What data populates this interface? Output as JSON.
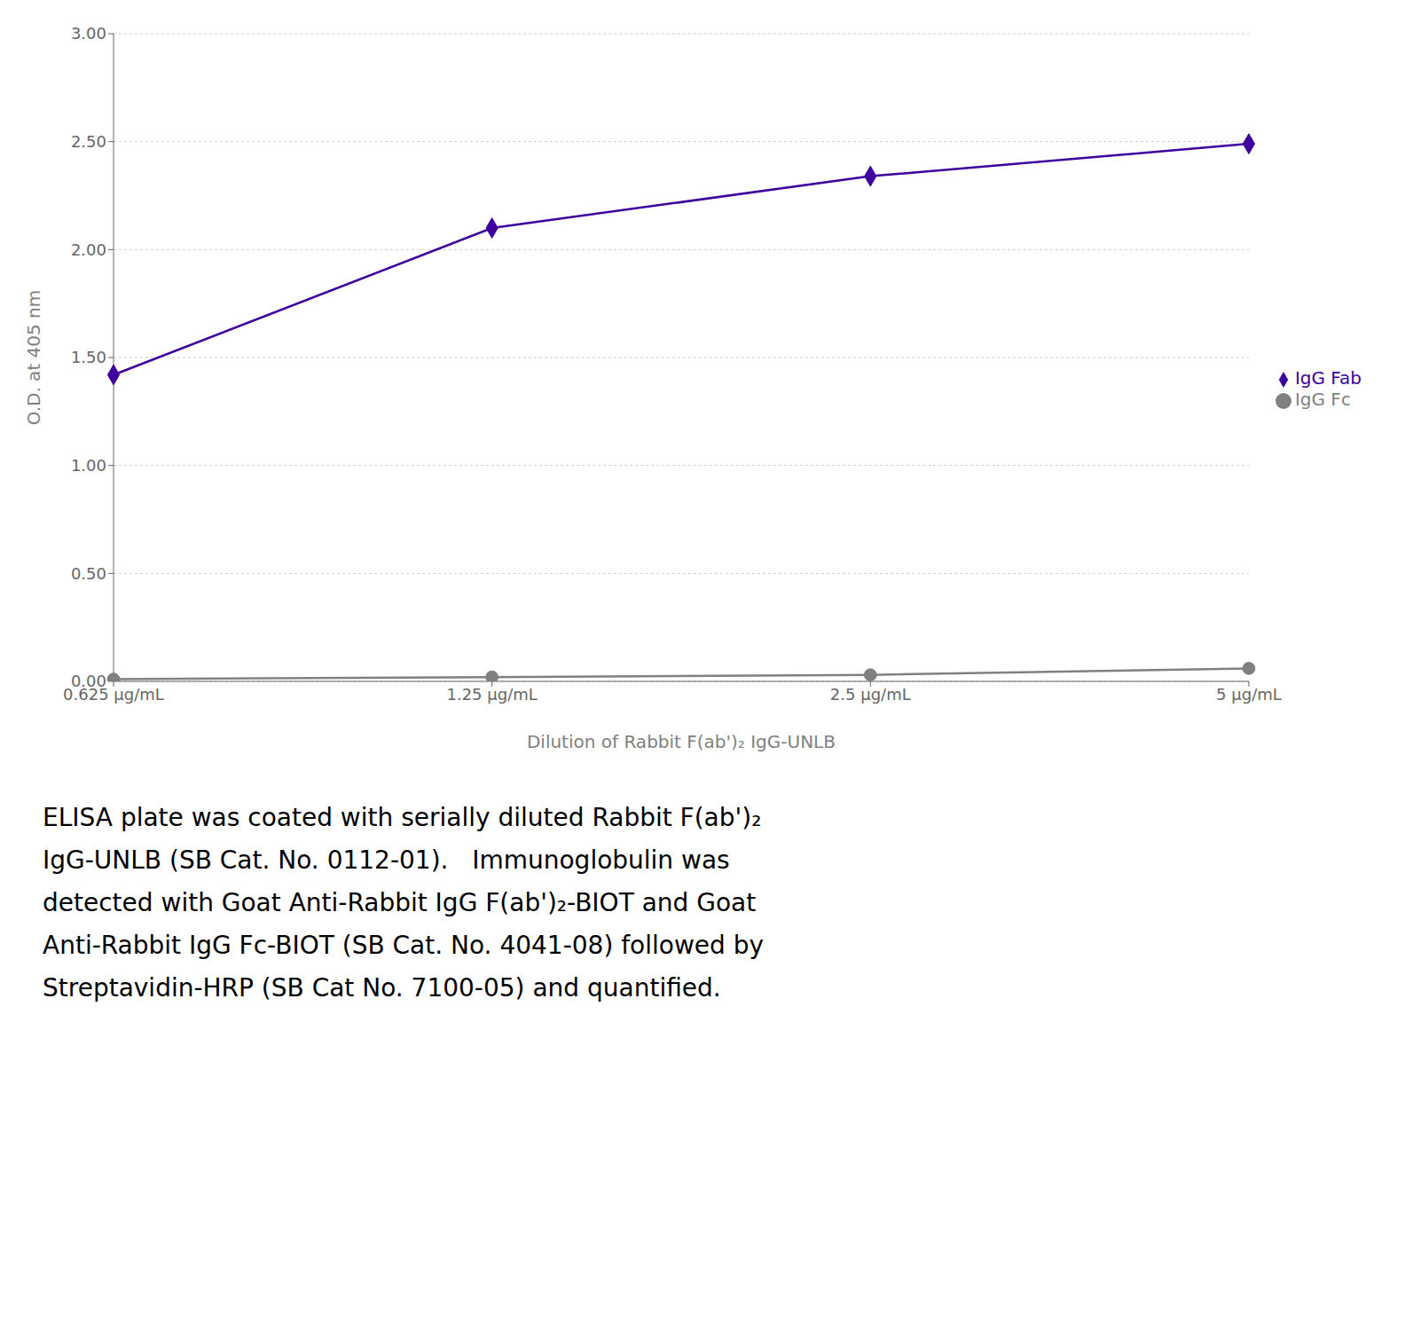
{
  "chart_data": {
    "type": "line",
    "xlabel": "Dilution of Rabbit F(ab')₂ IgG-UNLB",
    "ylabel": "O.D. at 405 nm",
    "categories": [
      "0.625 μg/mL",
      "1.25 μg/mL",
      "2.5 μg/mL",
      "5 μg/mL"
    ],
    "series": [
      {
        "name": "IgG Fab",
        "color": "#3d009e",
        "marker": "diamond",
        "values": [
          1.42,
          2.1,
          2.34,
          2.49
        ]
      },
      {
        "name": "IgG Fc",
        "color": "#808080",
        "marker": "circle",
        "values": [
          0.01,
          0.02,
          0.03,
          0.06
        ]
      }
    ],
    "ylim": [
      0.0,
      3.0
    ],
    "yticks": [
      {
        "value": 0.0,
        "label": "0.00"
      },
      {
        "value": 0.5,
        "label": "0.50"
      },
      {
        "value": 1.0,
        "label": "1.00"
      },
      {
        "value": 1.5,
        "label": "1.50"
      },
      {
        "value": 2.0,
        "label": "2.00"
      },
      {
        "value": 2.5,
        "label": "2.50"
      },
      {
        "value": 3.0,
        "label": "3.00"
      }
    ],
    "grid": "y",
    "legend": "right",
    "annotations": [
      "ELISA plate was coated with serially diluted Rabbit F(ab')₂",
      "IgG-UNLB (SB Cat. No. 0112-01).   Immunoglobulin was",
      "detected with Goat Anti-Rabbit IgG F(ab')₂-BIOT and Goat",
      "Anti-Rabbit IgG Fc-BIOT (SB Cat. No. 4041-08) followed by",
      "Streptavidin-HRP (SB Cat No. 7100-05) and quantified."
    ]
  }
}
